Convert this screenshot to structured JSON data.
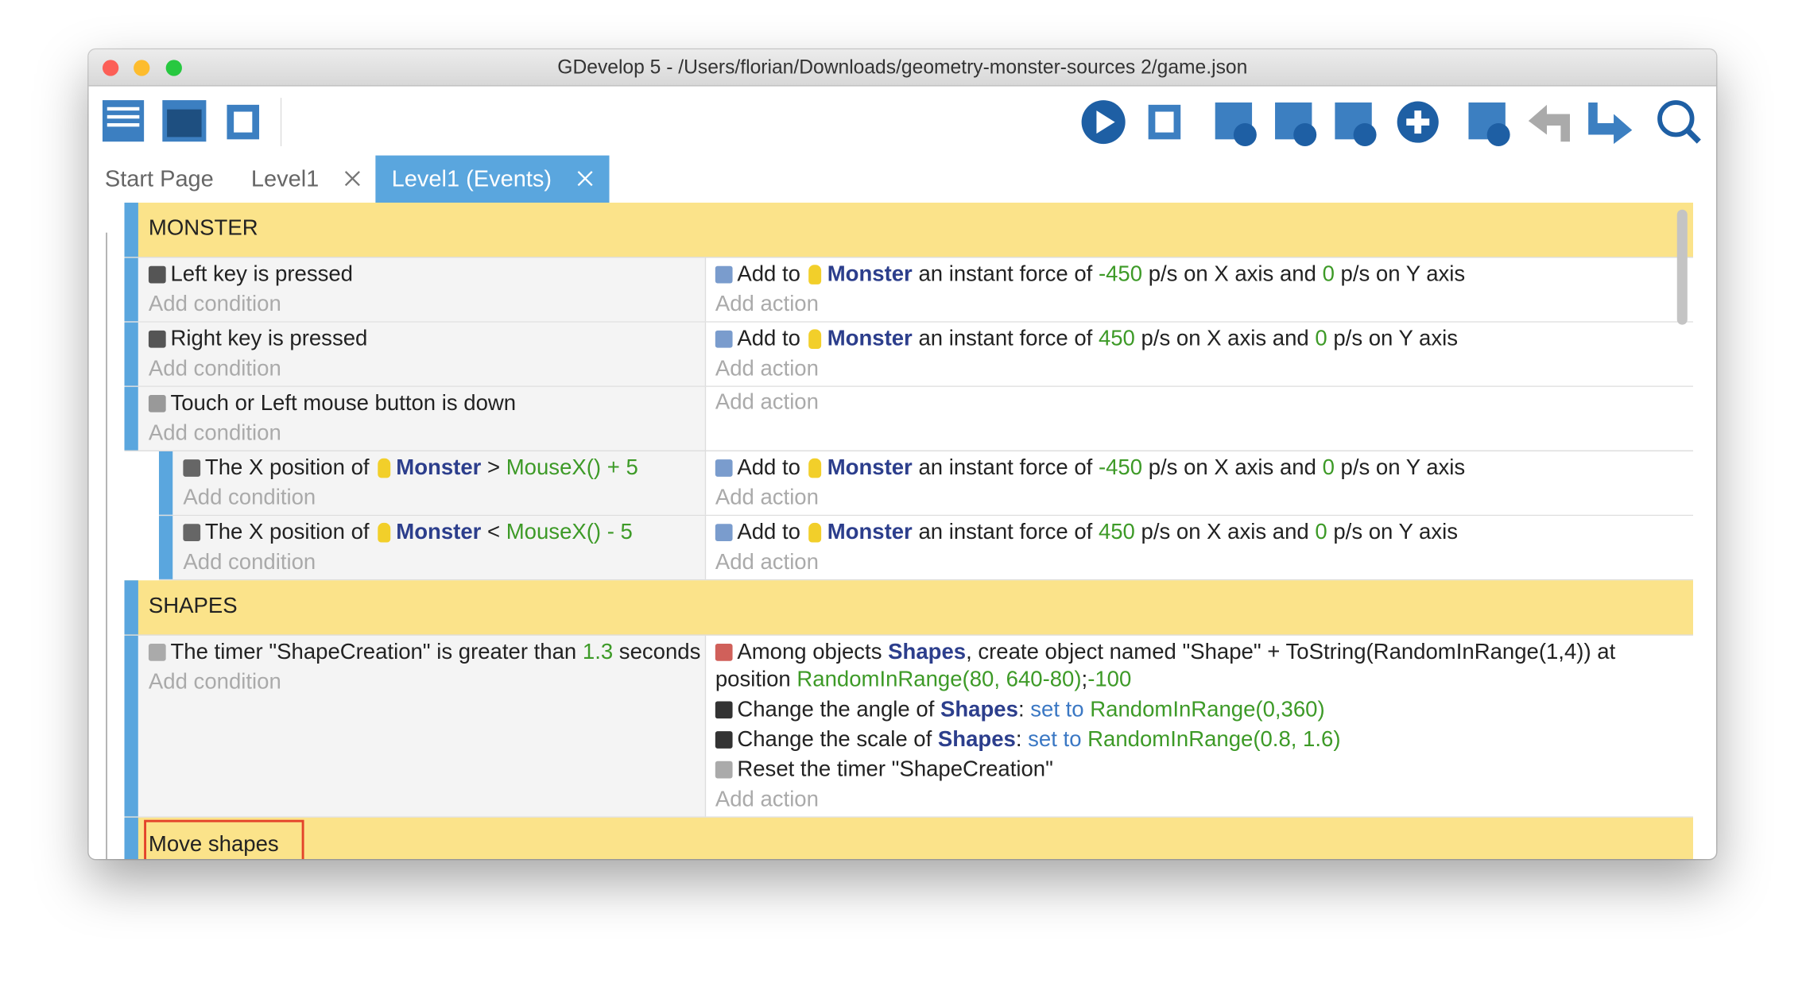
{
  "window": {
    "title": "GDevelop 5 - /Users/florian/Downloads/geometry-monster-sources 2/game.json"
  },
  "tabs": {
    "items": [
      "Start Page",
      "Level1",
      "Level1 (Events)"
    ],
    "active": 2,
    "closable": [
      1,
      2
    ]
  },
  "placeholders": {
    "add_condition": "Add condition",
    "add_action": "Add action"
  },
  "events": [
    {
      "kind": "group",
      "depth": 0,
      "label": "MONSTER"
    },
    {
      "kind": "event",
      "depth": 0,
      "conditions": [
        {
          "icon": "key",
          "segments": [
            {
              "text": "Left key is pressed"
            }
          ]
        }
      ],
      "actions": [
        {
          "icon": "force",
          "segments": [
            {
              "text": "Add to "
            },
            {
              "text": "Monster",
              "style": "object",
              "thumb": true
            },
            {
              "text": " an instant force of "
            },
            {
              "text": "-450",
              "style": "value"
            },
            {
              "text": " p/s on X axis and "
            },
            {
              "text": "0",
              "style": "value"
            },
            {
              "text": " p/s on Y axis"
            }
          ]
        }
      ]
    },
    {
      "kind": "event",
      "depth": 0,
      "conditions": [
        {
          "icon": "key",
          "segments": [
            {
              "text": "Right key is pressed"
            }
          ]
        }
      ],
      "actions": [
        {
          "icon": "force",
          "segments": [
            {
              "text": "Add to "
            },
            {
              "text": "Monster",
              "style": "object",
              "thumb": true
            },
            {
              "text": " an instant force of "
            },
            {
              "text": "450",
              "style": "value"
            },
            {
              "text": " p/s on X axis and "
            },
            {
              "text": "0",
              "style": "value"
            },
            {
              "text": " p/s on Y axis"
            }
          ]
        }
      ]
    },
    {
      "kind": "event",
      "depth": 0,
      "conditions": [
        {
          "icon": "mouse",
          "segments": [
            {
              "text": "Touch or Left mouse button is down"
            }
          ]
        }
      ],
      "actions": []
    },
    {
      "kind": "event",
      "depth": 1,
      "conditions": [
        {
          "icon": "position",
          "segments": [
            {
              "text": "The X position of "
            },
            {
              "text": "Monster",
              "style": "object",
              "thumb": true
            },
            {
              "text": " > "
            },
            {
              "text": "MouseX() + 5",
              "style": "value"
            }
          ]
        }
      ],
      "actions": [
        {
          "icon": "force",
          "segments": [
            {
              "text": "Add to "
            },
            {
              "text": "Monster",
              "style": "object",
              "thumb": true
            },
            {
              "text": " an instant force of "
            },
            {
              "text": "-450",
              "style": "value"
            },
            {
              "text": " p/s on X axis and "
            },
            {
              "text": "0",
              "style": "value"
            },
            {
              "text": " p/s on Y axis"
            }
          ]
        }
      ]
    },
    {
      "kind": "event",
      "depth": 1,
      "conditions": [
        {
          "icon": "position",
          "segments": [
            {
              "text": "The X position of "
            },
            {
              "text": "Monster",
              "style": "object",
              "thumb": true
            },
            {
              "text": " < "
            },
            {
              "text": "MouseX() - 5",
              "style": "value"
            }
          ]
        }
      ],
      "actions": [
        {
          "icon": "force",
          "segments": [
            {
              "text": "Add to "
            },
            {
              "text": "Monster",
              "style": "object",
              "thumb": true
            },
            {
              "text": " an instant force of "
            },
            {
              "text": "450",
              "style": "value"
            },
            {
              "text": " p/s on X axis and "
            },
            {
              "text": "0",
              "style": "value"
            },
            {
              "text": " p/s on Y axis"
            }
          ]
        }
      ]
    },
    {
      "kind": "group",
      "depth": 0,
      "label": "SHAPES"
    },
    {
      "kind": "event",
      "depth": 0,
      "conditions": [
        {
          "icon": "timer",
          "segments": [
            {
              "text": "The timer \"ShapeCreation\" is greater than "
            },
            {
              "text": "1.3",
              "style": "value"
            },
            {
              "text": " seconds"
            }
          ]
        }
      ],
      "actions": [
        {
          "icon": "create",
          "segments": [
            {
              "text": "Among objects "
            },
            {
              "text": "Shapes",
              "style": "object"
            },
            {
              "text": ", create object named \"Shape\" + ToString(RandomInRange(1,4)) at position "
            },
            {
              "text": "RandomInRange(80, 640-80)",
              "style": "value"
            },
            {
              "text": ";"
            },
            {
              "text": "-100",
              "style": "value"
            }
          ]
        },
        {
          "icon": "angle",
          "segments": [
            {
              "text": "Change the angle of "
            },
            {
              "text": "Shapes",
              "style": "object"
            },
            {
              "text": ": "
            },
            {
              "text": "set to",
              "style": "operator"
            },
            {
              "text": " "
            },
            {
              "text": "RandomInRange(0,360)",
              "style": "value"
            }
          ]
        },
        {
          "icon": "scale",
          "segments": [
            {
              "text": "Change the scale of "
            },
            {
              "text": "Shapes",
              "style": "object"
            },
            {
              "text": ": "
            },
            {
              "text": "set to",
              "style": "operator"
            },
            {
              "text": " "
            },
            {
              "text": "RandomInRange(0.8, 1.6)",
              "style": "value"
            }
          ]
        },
        {
          "icon": "timer",
          "segments": [
            {
              "text": "Reset the timer \"ShapeCreation\""
            }
          ]
        }
      ]
    },
    {
      "kind": "group",
      "depth": 0,
      "label": "Move shapes",
      "highlight": true
    }
  ]
}
